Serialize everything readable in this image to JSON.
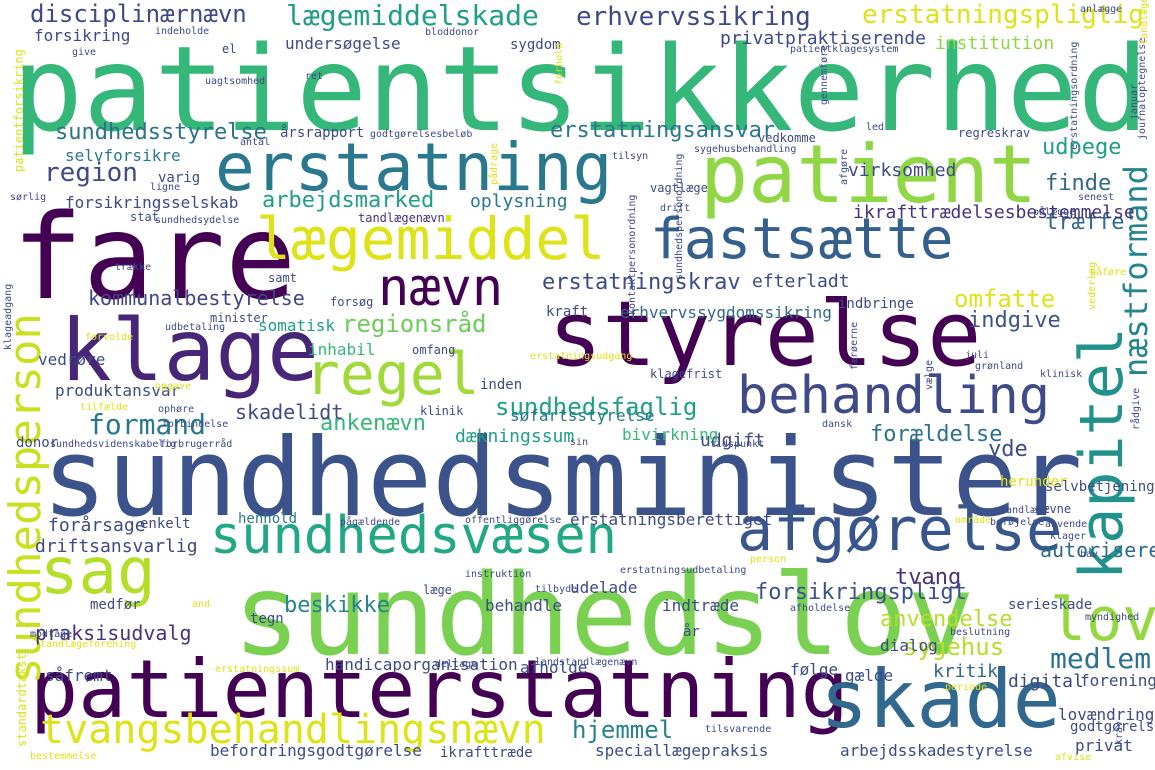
{
  "words": [
    {
      "text": "patientsikkerhed",
      "color": "#35b779",
      "rot": false
    },
    {
      "text": "sundhedsminister",
      "color": "#3b528b",
      "rot": false
    },
    {
      "text": "sundhedslov",
      "color": "#7ad151",
      "rot": false
    },
    {
      "text": "fare",
      "color": "#440154",
      "rot": false
    },
    {
      "text": "styrelse",
      "color": "#440154",
      "rot": false
    },
    {
      "text": "klage",
      "color": "#482677",
      "rot": false
    },
    {
      "text": "patienterstatning",
      "color": "#440154",
      "rot": false
    },
    {
      "text": "skade",
      "color": "#31688e",
      "rot": false
    },
    {
      "text": "patient",
      "color": "#8fd744",
      "rot": false
    },
    {
      "text": "erstatning",
      "color": "#2a788e",
      "rot": false
    },
    {
      "text": "lægemiddel",
      "color": "#dde318",
      "rot": false
    },
    {
      "text": "fastsætte",
      "color": "#355f8d",
      "rot": false
    },
    {
      "text": "kapitel",
      "color": "#21918c",
      "rot": true
    },
    {
      "text": "afgørelse",
      "color": "#39568c",
      "rot": false
    },
    {
      "text": "sundhedsvæsen",
      "color": "#22a884",
      "rot": false
    },
    {
      "text": "behandling",
      "color": "#3e4a89",
      "rot": false
    },
    {
      "text": "regel",
      "color": "#a0da39",
      "rot": false
    },
    {
      "text": "sag",
      "color": "#b5de2b",
      "rot": false
    },
    {
      "text": "nævn",
      "color": "#440154",
      "rot": false
    },
    {
      "text": "lov",
      "color": "#95d840",
      "rot": false
    },
    {
      "text": "tvangsbehandlingsnævn",
      "color": "#dde318",
      "rot": false
    },
    {
      "text": "sundhedsperson",
      "color": "#c8e020",
      "rot": true
    },
    {
      "text": "næstformand",
      "color": "#25848e",
      "rot": true
    },
    {
      "text": "disciplinærnævn",
      "color": "#3e4989",
      "rot": false
    },
    {
      "text": "lægemiddelskade",
      "color": "#1f9e89",
      "rot": false
    },
    {
      "text": "erhvervssikring",
      "color": "#3e4a89",
      "rot": false
    },
    {
      "text": "erstatningspligtig",
      "color": "#dde318",
      "rot": false
    },
    {
      "text": "sundhedsstyrelse",
      "color": "#2c728e",
      "rot": false
    },
    {
      "text": "erstatningsansvar",
      "color": "#2a788e",
      "rot": false
    },
    {
      "text": "region",
      "color": "#3e4a89",
      "rot": false
    },
    {
      "text": "arbejdsmarked",
      "color": "#1f9e89",
      "rot": false
    },
    {
      "text": "kommunalbestyrelse",
      "color": "#414487",
      "rot": false
    },
    {
      "text": "regionsråd",
      "color": "#6ccd5a",
      "rot": false
    },
    {
      "text": "erstatningskrav",
      "color": "#3e4a89",
      "rot": false
    },
    {
      "text": "sundhedsfaglig",
      "color": "#1fa088",
      "rot": false
    },
    {
      "text": "formand",
      "color": "#2a788e",
      "rot": false
    },
    {
      "text": "beskikke",
      "color": "#25848e",
      "rot": false
    },
    {
      "text": "praksisudvalg",
      "color": "#46337e",
      "rot": false
    },
    {
      "text": "medlem",
      "color": "#2c728e",
      "rot": false
    },
    {
      "text": "hjemmel",
      "color": "#26828e",
      "rot": false
    },
    {
      "text": "sygehus",
      "color": "#b5de2b",
      "rot": false
    },
    {
      "text": "anvendelse",
      "color": "#b5de2b",
      "rot": false
    },
    {
      "text": "tvang",
      "color": "#46327e",
      "rot": false
    },
    {
      "text": "forsikringspligt",
      "color": "#3b528b",
      "rot": false
    },
    {
      "text": "omfatte",
      "color": "#dde318",
      "rot": false
    },
    {
      "text": "udpege",
      "color": "#1f9e89",
      "rot": false
    },
    {
      "text": "finde",
      "color": "#31688e",
      "rot": false
    },
    {
      "text": "træffe",
      "color": "#31688e",
      "rot": false
    },
    {
      "text": "indgive",
      "color": "#3b528b",
      "rot": false
    },
    {
      "text": "forældelse",
      "color": "#2c728e",
      "rot": false
    },
    {
      "text": "yde",
      "color": "#3e4a89",
      "rot": false
    },
    {
      "text": "autorisere",
      "color": "#31688e",
      "rot": false
    },
    {
      "text": "kritik",
      "color": "#31688e",
      "rot": false
    },
    {
      "text": "ankenævn",
      "color": "#35b779",
      "rot": false
    },
    {
      "text": "skadelidt",
      "color": "#3e4a89",
      "rot": false
    },
    {
      "text": "virksomhed",
      "color": "#3e4a89",
      "rot": false
    },
    {
      "text": "ikrafttrædelsesbestemmelse",
      "color": "#46337e",
      "rot": false
    },
    {
      "text": "forsikringsselskab",
      "color": "#3e4a89",
      "rot": false
    },
    {
      "text": "selvforsikre",
      "color": "#2a788e",
      "rot": false
    },
    {
      "text": "privatpraktiserende",
      "color": "#3e4a89",
      "rot": false
    },
    {
      "text": "institution",
      "color": "#8fd744",
      "rot": false
    },
    {
      "text": "undersøgelse",
      "color": "#3e4a89",
      "rot": false
    },
    {
      "text": "forsikring",
      "color": "#3e4a89",
      "rot": false
    },
    {
      "text": "sygdom",
      "color": "#3e4a89",
      "rot": false
    },
    {
      "text": "årsrapport",
      "color": "#3e4a89",
      "rot": false
    },
    {
      "text": "oplysning",
      "color": "#2a788e",
      "rot": false
    },
    {
      "text": "efterladt",
      "color": "#3e4a89",
      "rot": false
    },
    {
      "text": "erhvervssygdomssikring",
      "color": "#31688e",
      "rot": false
    },
    {
      "text": "somatisk",
      "color": "#1f9e89",
      "rot": false
    },
    {
      "text": "inhabil",
      "color": "#35b779",
      "rot": false
    },
    {
      "text": "vedrøre",
      "color": "#3e4a89",
      "rot": false
    },
    {
      "text": "produktansvar",
      "color": "#3e4a89",
      "rot": false
    },
    {
      "text": "dækningssum",
      "color": "#1f9e89",
      "rot": false
    },
    {
      "text": "udgift",
      "color": "#3e4a89",
      "rot": false
    },
    {
      "text": "søfartsstyrelse",
      "color": "#2a788e",
      "rot": false
    },
    {
      "text": "bivirkning",
      "color": "#35b779",
      "rot": false
    },
    {
      "text": "forårsage",
      "color": "#3e4a89",
      "rot": false
    },
    {
      "text": "enkelt",
      "color": "#3e4a89",
      "rot": false
    },
    {
      "text": "driftsansvarlig",
      "color": "#3e4a89",
      "rot": false
    },
    {
      "text": "henhold",
      "color": "#2a788e",
      "rot": false
    },
    {
      "text": "erstatningsberettiget",
      "color": "#3e4a89",
      "rot": false
    },
    {
      "text": "indtræde",
      "color": "#3e4a89",
      "rot": false
    },
    {
      "text": "udelade",
      "color": "#3e4a89",
      "rot": false
    },
    {
      "text": "behandle",
      "color": "#3e4a89",
      "rot": false
    },
    {
      "text": "tegn",
      "color": "#3e4a89",
      "rot": false
    },
    {
      "text": "medfør",
      "color": "#3e4a89",
      "rot": false
    },
    {
      "text": "handicaporganisation",
      "color": "#3e4a89",
      "rot": false
    },
    {
      "text": "såfremt",
      "color": "#3e4a89",
      "rot": false
    },
    {
      "text": "afholde",
      "color": "#3e4a89",
      "rot": false
    },
    {
      "text": "følge",
      "color": "#3e4a89",
      "rot": false
    },
    {
      "text": "gælde",
      "color": "#3e4a89",
      "rot": false
    },
    {
      "text": "digital",
      "color": "#3e4a89",
      "rot": false
    },
    {
      "text": "forening",
      "color": "#3e4a89",
      "rot": false
    },
    {
      "text": "dialog",
      "color": "#3e4a89",
      "rot": false
    },
    {
      "text": "serieskade",
      "color": "#3e4a89",
      "rot": false
    },
    {
      "text": "selvbetjening",
      "color": "#3e4a89",
      "rot": false
    },
    {
      "text": "lovændring",
      "color": "#3e4a89",
      "rot": false
    },
    {
      "text": "godtgørelse",
      "color": "#3e4a89",
      "rot": false
    },
    {
      "text": "privat",
      "color": "#3e4a89",
      "rot": false
    },
    {
      "text": "arbejdsskadestyrelse",
      "color": "#3e4a89",
      "rot": false
    },
    {
      "text": "speciallægepraksis",
      "color": "#3e4a89",
      "rot": false
    },
    {
      "text": "befordringsgodtgørelse",
      "color": "#3e4a89",
      "rot": false
    },
    {
      "text": "ikrafttræde",
      "color": "#3e4a89",
      "rot": false
    },
    {
      "text": "tandlægenævn",
      "color": "#46337e",
      "rot": false
    },
    {
      "text": "år",
      "color": "#3e4a89",
      "rot": false
    },
    {
      "text": "klagefrist",
      "color": "#3e4a89",
      "rot": false
    },
    {
      "text": "klinik",
      "color": "#3e4a89",
      "rot": false
    },
    {
      "text": "inden",
      "color": "#3e4a89",
      "rot": false
    },
    {
      "text": "herunder",
      "color": "#dde318",
      "rot": false
    },
    {
      "text": "nævne",
      "color": "#3e4a89",
      "rot": false
    },
    {
      "text": "samt",
      "color": "#3e4a89",
      "rot": false
    },
    {
      "text": "forsøg",
      "color": "#3e4a89",
      "rot": false
    },
    {
      "text": "minister",
      "color": "#3e4a89",
      "rot": false
    },
    {
      "text": "kraft",
      "color": "#3e4a89",
      "rot": false
    },
    {
      "text": "omfang",
      "color": "#3e4a89",
      "rot": false
    },
    {
      "text": "indbringe",
      "color": "#3e4a89",
      "rot": false
    },
    {
      "text": "vagtlæge",
      "color": "#3e4a89",
      "rot": false
    },
    {
      "text": "regreskrav",
      "color": "#3e4a89",
      "rot": false
    },
    {
      "text": "vedkomme",
      "color": "#3e4a89",
      "rot": false
    },
    {
      "text": "godtgørelsesbeløb",
      "color": "#3e4a89",
      "rot": false
    },
    {
      "text": "antal",
      "color": "#3e4a89",
      "rot": false
    },
    {
      "text": "varig",
      "color": "#3e4a89",
      "rot": false
    },
    {
      "text": "ligne",
      "color": "#3e4a89",
      "rot": false
    },
    {
      "text": "stat",
      "color": "#3e4a89",
      "rot": false
    },
    {
      "text": "sundhedsydelse",
      "color": "#3e4a89",
      "rot": false
    },
    {
      "text": "uagtsomhed",
      "color": "#3e4a89",
      "rot": false
    },
    {
      "text": "ret",
      "color": "#3e4a89",
      "rot": false
    },
    {
      "text": "el",
      "color": "#3e4a89",
      "rot": false
    },
    {
      "text": "give",
      "color": "#3e4a89",
      "rot": false
    },
    {
      "text": "indeholde",
      "color": "#3e4a89",
      "rot": false
    },
    {
      "text": "bloddonor",
      "color": "#3e4a89",
      "rot": false
    },
    {
      "text": "tilsyn",
      "color": "#3e4a89",
      "rot": false
    },
    {
      "text": "sygehusbehandling",
      "color": "#3e4a89",
      "rot": false
    },
    {
      "text": "led",
      "color": "#3e4a89",
      "rot": false
    },
    {
      "text": "patientklagesystem",
      "color": "#3e4a89",
      "rot": false
    },
    {
      "text": "pålægge",
      "color": "#3e4a89",
      "rot": false
    },
    {
      "text": "drift",
      "color": "#3e4a89",
      "rot": false
    },
    {
      "text": "sørlig",
      "color": "#3e4a89",
      "rot": false
    },
    {
      "text": "senest",
      "color": "#3e4a89",
      "rot": false
    },
    {
      "text": "juli",
      "color": "#3e4a89",
      "rot": false
    },
    {
      "text": "grønland",
      "color": "#3e4a89",
      "rot": false
    },
    {
      "text": "klinisk",
      "color": "#3e4a89",
      "rot": false
    },
    {
      "text": "tidspunkt",
      "color": "#3e4a89",
      "rot": false
    },
    {
      "text": "dansk",
      "color": "#3e4a89",
      "rot": false
    },
    {
      "text": "sin",
      "color": "#3e4a89",
      "rot": false
    },
    {
      "text": "donor",
      "color": "#3e4a89",
      "rot": false
    },
    {
      "text": "forbindelse",
      "color": "#3e4a89",
      "rot": false
    },
    {
      "text": "forbrugerråd",
      "color": "#3e4a89",
      "rot": false
    },
    {
      "text": "sundhedsvidenskabelig",
      "color": "#3e4a89",
      "rot": false
    },
    {
      "text": "ophøre",
      "color": "#3e4a89",
      "rot": false
    },
    {
      "text": "tilfælde",
      "color": "#dde318",
      "rot": false
    },
    {
      "text": "opgave",
      "color": "#dde318",
      "rot": false
    },
    {
      "text": "udbetaling",
      "color": "#3e4a89",
      "rot": false
    },
    {
      "text": "forvolde",
      "color": "#dde318",
      "rot": false
    },
    {
      "text": "trække",
      "color": "#3e4a89",
      "rot": false
    },
    {
      "text": "pågældende",
      "color": "#3e4a89",
      "rot": false
    },
    {
      "text": "offentliggørelse",
      "color": "#3e4a89",
      "rot": false
    },
    {
      "text": "område",
      "color": "#dde318",
      "rot": false
    },
    {
      "text": "tandlæge",
      "color": "#3e4a89",
      "rot": false
    },
    {
      "text": "beføjelse",
      "color": "#3e4a89",
      "rot": false
    },
    {
      "text": "anvende",
      "color": "#3e4a89",
      "rot": false
    },
    {
      "text": "klager",
      "color": "#3e4a89",
      "rot": false
    },
    {
      "text": "hav",
      "color": "#3e4a89",
      "rot": false
    },
    {
      "text": "person",
      "color": "#dde318",
      "rot": false
    },
    {
      "text": "myndighed",
      "color": "#3e4a89",
      "rot": false
    },
    {
      "text": "instruktion",
      "color": "#3e4a89",
      "rot": false
    },
    {
      "text": "erstatningsudbetaling",
      "color": "#3e4a89",
      "rot": false
    },
    {
      "text": "læge",
      "color": "#3e4a89",
      "rot": false
    },
    {
      "text": "tilbyde",
      "color": "#3e4a89",
      "rot": false
    },
    {
      "text": "afholdelse",
      "color": "#3e4a89",
      "rot": false
    },
    {
      "text": "beslutning",
      "color": "#3e4a89",
      "rot": false
    },
    {
      "text": "modtage",
      "color": "#3e4a89",
      "rot": false
    },
    {
      "text": "and",
      "color": "#dde318",
      "rot": false
    },
    {
      "text": "tandlægeforening",
      "color": "#dde318",
      "rot": false
    },
    {
      "text": "erstatningssum",
      "color": "#dde318",
      "rot": false
    },
    {
      "text": "deltage",
      "color": "#3e4a89",
      "rot": false
    },
    {
      "text": "landstandlægenævn",
      "color": "#3e4a89",
      "rot": false
    },
    {
      "text": "periode",
      "color": "#dde318",
      "rot": false
    },
    {
      "text": "bestemmelse",
      "color": "#dde318",
      "rot": false
    },
    {
      "text": "tilsvarende",
      "color": "#3e4a89",
      "rot": false
    },
    {
      "text": "afvise",
      "color": "#dde318",
      "rot": false
    },
    {
      "text": "patientforsikring",
      "color": "#dde318",
      "rot": true
    },
    {
      "text": "klageadgang",
      "color": "#3e4a89",
      "rot": true
    },
    {
      "text": "standardtakst",
      "color": "#dde318",
      "rot": true
    },
    {
      "text": "kontaktpersonordning",
      "color": "#3e4a89",
      "rot": true
    },
    {
      "text": "erstatningsordning",
      "color": "#3e4a89",
      "rot": true
    },
    {
      "text": "journaloptegnelse",
      "color": "#3e4a89",
      "rot": true
    },
    {
      "text": "januar",
      "color": "#3e4a89",
      "rot": true
    },
    {
      "text": "rådgive",
      "color": "#3e4a89",
      "rot": true
    },
    {
      "text": "pådrage",
      "color": "#dde318",
      "rot": true
    },
    {
      "text": "erstatningsudgang",
      "color": "#dde318",
      "rot": false
    },
    {
      "text": "gennemføre",
      "color": "#3e4a89",
      "rot": true
    },
    {
      "text": "vederlag",
      "color": "#dde318",
      "rot": true
    },
    {
      "text": "påføre",
      "color": "#dde318",
      "rot": false
    },
    {
      "text": "tandlæge",
      "color": "#dde318",
      "rot": true
    },
    {
      "text": "sundhedspersonordning",
      "color": "#3e4a89",
      "rot": true
    },
    {
      "text": "afgøre",
      "color": "#3e4a89",
      "rot": true
    },
    {
      "text": "forhold",
      "color": "#dde318",
      "rot": true
    },
    {
      "text": "anlægge",
      "color": "#3e4a89",
      "rot": false
    },
    {
      "text": "krav",
      "color": "#3e4a89",
      "rot": true
    },
    {
      "text": "færøerne",
      "color": "#3e4a89",
      "rot": true
    },
    {
      "text": "vælge",
      "color": "#3e4a89",
      "rot": true
    }
  ]
}
